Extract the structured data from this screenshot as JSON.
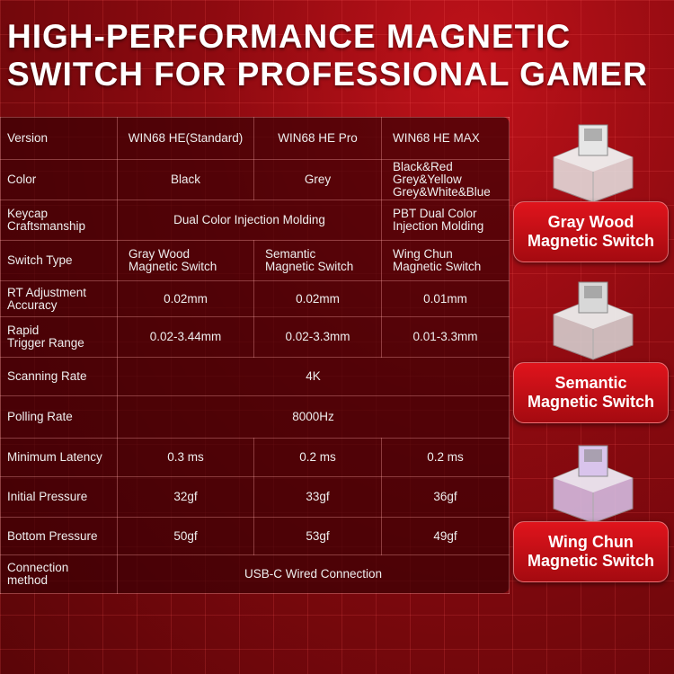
{
  "title": [
    "HIGH-PERFORMANCE MAGNETIC",
    "SWITCH FOR PROFESSIONAL GAMER"
  ],
  "table": {
    "rows": [
      {
        "label": "Version",
        "cells": [
          "WIN68 HE(Standard)",
          "WIN68 HE Pro",
          "WIN68 HE MAX"
        ]
      },
      {
        "label": "Color",
        "cells": [
          "Black",
          "Grey",
          "Black&Red\nGrey&Yellow\nGrey&White&Blue"
        ]
      },
      {
        "label": "Keycap\nCraftsmanship",
        "cells": [
          "Dual Color Injection Molding",
          "PBT Dual Color\nInjection Molding"
        ]
      },
      {
        "label": "Switch Type",
        "cells": [
          "Gray Wood\nMagnetic Switch",
          "Semantic\nMagnetic Switch",
          "Wing Chun\nMagnetic Switch"
        ]
      },
      {
        "label": "RT Adjustment\nAccuracy",
        "cells": [
          "0.02mm",
          "0.02mm",
          "0.01mm"
        ]
      },
      {
        "label": "Rapid\nTrigger Range",
        "cells": [
          "0.02-3.44mm",
          "0.02-3.3mm",
          "0.01-3.3mm"
        ]
      },
      {
        "label": "Scanning Rate",
        "cells": [
          "4K"
        ]
      },
      {
        "label": "Polling Rate",
        "cells": [
          "8000Hz"
        ]
      },
      {
        "label": "Minimum Latency",
        "cells": [
          "0.3 ms",
          "0.2 ms",
          "0.2 ms"
        ]
      },
      {
        "label": "Initial Pressure",
        "cells": [
          "32gf",
          "33gf",
          "36gf"
        ]
      },
      {
        "label": "Bottom Pressure",
        "cells": [
          "50gf",
          "53gf",
          "49gf"
        ]
      },
      {
        "label": "Connection\nmethod",
        "cells": [
          "USB-C Wired Connection"
        ]
      }
    ]
  },
  "switches": [
    {
      "name": "Gray Wood\nMagnetic Switch",
      "color": "#e6e6e6"
    },
    {
      "name": "Semantic\nMagnetic Switch",
      "color": "#d8d8d8"
    },
    {
      "name": "Wing Chun\nMagnetic Switch",
      "color": "#d9c4ec"
    }
  ]
}
